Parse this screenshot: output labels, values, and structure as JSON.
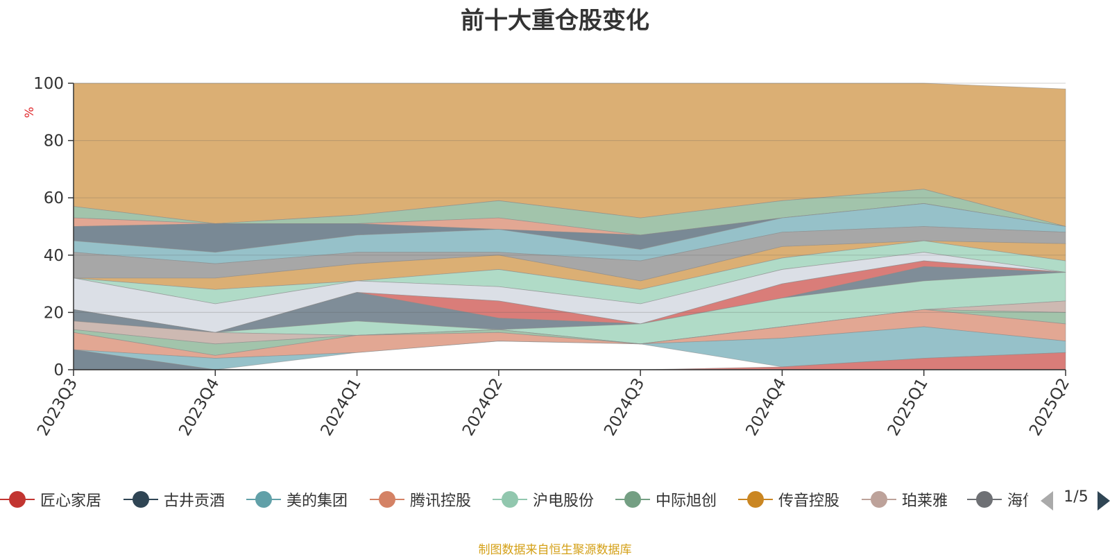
{
  "chart_data": {
    "type": "area",
    "title": "前十大重仓股变化",
    "ylabel": "%",
    "ylim": [
      0,
      100
    ],
    "yticks": [
      0,
      20,
      40,
      60,
      80,
      100
    ],
    "grid": true,
    "legend_position": "bottom",
    "x": [
      "2023Q3",
      "2023Q4",
      "2024Q1",
      "2024Q2",
      "2024Q3",
      "2024Q4",
      "2025Q1",
      "2025Q2"
    ],
    "layers": [
      {
        "color": "#d8a868",
        "upper": [
          100,
          100,
          100,
          100,
          100,
          100,
          100,
          98
        ],
        "lower": [
          57,
          51,
          54,
          59,
          53,
          59,
          63,
          50
        ]
      },
      {
        "color": "#9abfa4",
        "upper": [
          57,
          51,
          54,
          59,
          53,
          59,
          63,
          50
        ],
        "lower": [
          53,
          51,
          51,
          53,
          47,
          53,
          58,
          50
        ]
      },
      {
        "color": "#e0a08a",
        "upper": [
          53,
          51,
          51,
          53,
          47,
          53,
          58,
          50
        ],
        "lower": [
          50,
          51,
          51,
          49,
          47,
          53,
          58,
          50
        ]
      },
      {
        "color": "#6e7f8c",
        "upper": [
          50,
          51,
          51,
          49,
          47,
          53,
          58,
          50
        ],
        "lower": [
          45,
          41,
          47,
          49,
          42,
          53,
          58,
          50
        ]
      },
      {
        "color": "#8dbcc4",
        "upper": [
          45,
          41,
          47,
          49,
          42,
          53,
          58,
          50
        ],
        "lower": [
          41,
          37,
          41,
          41,
          38,
          48,
          50,
          48
        ]
      },
      {
        "color": "#a0a0a0",
        "upper": [
          41,
          37,
          41,
          41,
          38,
          48,
          50,
          48
        ],
        "lower": [
          32,
          32,
          37,
          40,
          31,
          43,
          45,
          44
        ]
      },
      {
        "color": "#d8a868",
        "upper": [
          32,
          32,
          37,
          40,
          31,
          43,
          45,
          44
        ],
        "lower": [
          32,
          28,
          31,
          35,
          28,
          39,
          45,
          38
        ]
      },
      {
        "color": "#a9d8c2",
        "upper": [
          32,
          28,
          31,
          35,
          28,
          39,
          45,
          38
        ],
        "lower": [
          32,
          23,
          31,
          29,
          23,
          35,
          41,
          34
        ]
      },
      {
        "color": "#d8dce4",
        "upper": [
          32,
          23,
          31,
          29,
          23,
          35,
          41,
          34
        ],
        "lower": [
          21,
          13,
          27,
          24,
          16,
          30,
          38,
          34
        ]
      },
      {
        "color": "#d6726e",
        "upper": [
          21,
          13,
          27,
          24,
          16,
          30,
          38,
          34
        ],
        "lower": [
          21,
          13,
          27,
          18,
          16,
          25,
          36,
          34
        ]
      },
      {
        "color": "#74838f",
        "upper": [
          21,
          13,
          27,
          18,
          16,
          25,
          36,
          34
        ],
        "lower": [
          17,
          13,
          17,
          14,
          16,
          25,
          31,
          34
        ]
      },
      {
        "color": "#a9d8c2",
        "upper": [
          17,
          13,
          17,
          14,
          16,
          25,
          31,
          34
        ],
        "lower": [
          17,
          13,
          12,
          14,
          9,
          15,
          21,
          24
        ]
      },
      {
        "color": "#c9b3ab",
        "upper": [
          17,
          13,
          12,
          14,
          9,
          15,
          21,
          24
        ],
        "lower": [
          14,
          9,
          12,
          14,
          9,
          15,
          21,
          20
        ]
      },
      {
        "color": "#9abfa4",
        "upper": [
          14,
          9,
          12,
          14,
          9,
          15,
          21,
          20
        ],
        "lower": [
          13,
          5,
          12,
          13,
          9,
          15,
          21,
          16
        ]
      },
      {
        "color": "#e0a08a",
        "upper": [
          13,
          5,
          12,
          13,
          9,
          15,
          21,
          16
        ],
        "lower": [
          7,
          4,
          6,
          10,
          9,
          11,
          15,
          10
        ]
      },
      {
        "color": "#8dbcc4",
        "upper": [
          7,
          4,
          6,
          10,
          9,
          11,
          15,
          10
        ],
        "lower": [
          7,
          0,
          6,
          10,
          9,
          1,
          4,
          6
        ]
      },
      {
        "color": "#6e7f8c",
        "upper": [
          7,
          0,
          0,
          0,
          0,
          0,
          0,
          0
        ],
        "lower": [
          0,
          0,
          0,
          0,
          0,
          0,
          0,
          0
        ]
      },
      {
        "color": "#d6726e",
        "upper": [
          0,
          0,
          0,
          0,
          0,
          1,
          4,
          6
        ],
        "lower": [
          0,
          0,
          0,
          0,
          0,
          0,
          0,
          0
        ]
      }
    ]
  },
  "legend": {
    "items": [
      {
        "label": "匠心家居",
        "color": "#c23531"
      },
      {
        "label": "古井贡酒",
        "color": "#2f4554"
      },
      {
        "label": "美的集团",
        "color": "#61a0a8"
      },
      {
        "label": "腾讯控股",
        "color": "#d48265"
      },
      {
        "label": "沪电股份",
        "color": "#91c7ae"
      },
      {
        "label": "中际旭创",
        "color": "#749f83"
      },
      {
        "label": "传音控股",
        "color": "#ca8622"
      },
      {
        "label": "珀莱雅",
        "color": "#bda29a"
      },
      {
        "label": "海信",
        "color": "#6e7074"
      }
    ],
    "page_text": "1/5"
  },
  "source_note": "制图数据来自恒生聚源数据库"
}
